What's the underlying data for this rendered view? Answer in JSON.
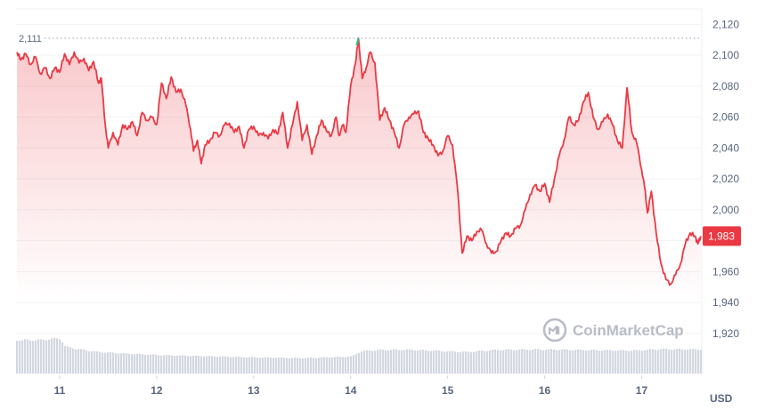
{
  "chart_data": {
    "type": "area",
    "currency": "USD",
    "ylim": [
      1900,
      2130
    ],
    "y_ticks": [
      1920,
      1940,
      1960,
      1980,
      2000,
      2020,
      2040,
      2060,
      2080,
      2100,
      2120
    ],
    "y_tick_labels": [
      "1,920",
      "1,940",
      "1,960",
      "1,980",
      "2,000",
      "2,020",
      "2,040",
      "2,060",
      "2,080",
      "2,100",
      "2,120"
    ],
    "x_range": [
      10.55,
      17.62
    ],
    "x_ticks": [
      11,
      12,
      13,
      14,
      15,
      16,
      17
    ],
    "x_tick_labels": [
      "11",
      "12",
      "13",
      "14",
      "15",
      "16",
      "17"
    ],
    "high_value": 2111,
    "high_label": "2,111",
    "current_value": 1983,
    "current_label": "1,983",
    "grid": true,
    "watermark": "CoinMarketCap",
    "colors": {
      "line": "#ea3943",
      "peak_segment": "#16c784",
      "fill_top": "#ea3943",
      "volume": "#d3d7e0",
      "grid": "#eff2f5",
      "axis_text": "#58667e",
      "price_tag": "#ea3943",
      "price_tag_text": "#ffffff"
    },
    "series": [
      {
        "points": [
          [
            10.56,
            2102
          ],
          [
            10.6,
            2097
          ],
          [
            10.65,
            2101
          ],
          [
            10.7,
            2094
          ],
          [
            10.75,
            2099
          ],
          [
            10.8,
            2088
          ],
          [
            10.85,
            2092
          ],
          [
            10.9,
            2085
          ],
          [
            10.95,
            2092
          ],
          [
            11.0,
            2089
          ],
          [
            11.05,
            2101
          ],
          [
            11.1,
            2094
          ],
          [
            11.15,
            2102
          ],
          [
            11.2,
            2095
          ],
          [
            11.25,
            2098
          ],
          [
            11.3,
            2090
          ],
          [
            11.35,
            2096
          ],
          [
            11.4,
            2082
          ],
          [
            11.43,
            2085
          ],
          [
            11.47,
            2055
          ],
          [
            11.5,
            2040
          ],
          [
            11.55,
            2050
          ],
          [
            11.6,
            2042
          ],
          [
            11.65,
            2055
          ],
          [
            11.7,
            2052
          ],
          [
            11.75,
            2057
          ],
          [
            11.8,
            2048
          ],
          [
            11.85,
            2063
          ],
          [
            11.9,
            2058
          ],
          [
            11.95,
            2060
          ],
          [
            12.0,
            2055
          ],
          [
            12.05,
            2082
          ],
          [
            12.1,
            2072
          ],
          [
            12.15,
            2086
          ],
          [
            12.2,
            2076
          ],
          [
            12.25,
            2078
          ],
          [
            12.3,
            2068
          ],
          [
            12.35,
            2052
          ],
          [
            12.38,
            2038
          ],
          [
            12.42,
            2045
          ],
          [
            12.46,
            2030
          ],
          [
            12.5,
            2042
          ],
          [
            12.55,
            2045
          ],
          [
            12.6,
            2050
          ],
          [
            12.65,
            2048
          ],
          [
            12.7,
            2055
          ],
          [
            12.75,
            2056
          ],
          [
            12.8,
            2050
          ],
          [
            12.85,
            2054
          ],
          [
            12.9,
            2040
          ],
          [
            12.95,
            2052
          ],
          [
            13.0,
            2054
          ],
          [
            13.05,
            2048
          ],
          [
            13.1,
            2050
          ],
          [
            13.15,
            2046
          ],
          [
            13.2,
            2052
          ],
          [
            13.25,
            2049
          ],
          [
            13.3,
            2063
          ],
          [
            13.35,
            2040
          ],
          [
            13.4,
            2055
          ],
          [
            13.45,
            2070
          ],
          [
            13.5,
            2045
          ],
          [
            13.55,
            2055
          ],
          [
            13.6,
            2036
          ],
          [
            13.65,
            2048
          ],
          [
            13.7,
            2058
          ],
          [
            13.75,
            2051
          ],
          [
            13.8,
            2048
          ],
          [
            13.85,
            2060
          ],
          [
            13.88,
            2048
          ],
          [
            13.92,
            2055
          ],
          [
            13.95,
            2050
          ],
          [
            14.0,
            2080
          ],
          [
            14.05,
            2095
          ],
          [
            14.08,
            2111
          ],
          [
            14.12,
            2085
          ],
          [
            14.16,
            2092
          ],
          [
            14.2,
            2102
          ],
          [
            14.25,
            2095
          ],
          [
            14.3,
            2058
          ],
          [
            14.35,
            2066
          ],
          [
            14.4,
            2058
          ],
          [
            14.45,
            2050
          ],
          [
            14.5,
            2040
          ],
          [
            14.55,
            2055
          ],
          [
            14.6,
            2060
          ],
          [
            14.65,
            2062
          ],
          [
            14.7,
            2064
          ],
          [
            14.75,
            2050
          ],
          [
            14.8,
            2046
          ],
          [
            14.85,
            2042
          ],
          [
            14.9,
            2035
          ],
          [
            14.95,
            2038
          ],
          [
            15.0,
            2048
          ],
          [
            15.05,
            2042
          ],
          [
            15.1,
            2015
          ],
          [
            15.15,
            1972
          ],
          [
            15.2,
            1983
          ],
          [
            15.25,
            1980
          ],
          [
            15.3,
            1986
          ],
          [
            15.35,
            1987
          ],
          [
            15.4,
            1978
          ],
          [
            15.45,
            1972
          ],
          [
            15.5,
            1973
          ],
          [
            15.55,
            1980
          ],
          [
            15.6,
            1985
          ],
          [
            15.65,
            1983
          ],
          [
            15.7,
            1988
          ],
          [
            15.75,
            1990
          ],
          [
            15.8,
            2000
          ],
          [
            15.85,
            2010
          ],
          [
            15.9,
            2016
          ],
          [
            15.95,
            2012
          ],
          [
            16.0,
            2017
          ],
          [
            16.05,
            2005
          ],
          [
            16.1,
            2020
          ],
          [
            16.15,
            2035
          ],
          [
            16.2,
            2045
          ],
          [
            16.25,
            2060
          ],
          [
            16.3,
            2055
          ],
          [
            16.35,
            2058
          ],
          [
            16.4,
            2070
          ],
          [
            16.45,
            2076
          ],
          [
            16.5,
            2060
          ],
          [
            16.55,
            2052
          ],
          [
            16.6,
            2057
          ],
          [
            16.65,
            2062
          ],
          [
            16.7,
            2055
          ],
          [
            16.75,
            2045
          ],
          [
            16.8,
            2040
          ],
          [
            16.85,
            2079
          ],
          [
            16.9,
            2050
          ],
          [
            16.95,
            2043
          ],
          [
            17.0,
            2026
          ],
          [
            17.03,
            2015
          ],
          [
            17.06,
            1998
          ],
          [
            17.1,
            2012
          ],
          [
            17.15,
            1985
          ],
          [
            17.2,
            1965
          ],
          [
            17.25,
            1955
          ],
          [
            17.3,
            1952
          ],
          [
            17.35,
            1958
          ],
          [
            17.4,
            1965
          ],
          [
            17.45,
            1978
          ],
          [
            17.5,
            1985
          ],
          [
            17.55,
            1983
          ],
          [
            17.58,
            1978
          ],
          [
            17.61,
            1983
          ]
        ]
      },
      {
        "name": "volume",
        "points": [
          [
            10.56,
            0.8
          ],
          [
            10.8,
            0.8
          ],
          [
            10.9,
            0.83
          ],
          [
            11.0,
            0.84
          ],
          [
            11.05,
            0.62
          ],
          [
            11.2,
            0.55
          ],
          [
            11.4,
            0.48
          ],
          [
            11.6,
            0.45
          ],
          [
            12.0,
            0.4
          ],
          [
            12.5,
            0.37
          ],
          [
            13.0,
            0.34
          ],
          [
            13.5,
            0.32
          ],
          [
            14.0,
            0.36
          ],
          [
            14.1,
            0.5
          ],
          [
            14.3,
            0.54
          ],
          [
            14.6,
            0.54
          ],
          [
            15.0,
            0.5
          ],
          [
            15.2,
            0.48
          ],
          [
            15.5,
            0.54
          ],
          [
            16.0,
            0.55
          ],
          [
            16.5,
            0.53
          ],
          [
            16.9,
            0.52
          ],
          [
            17.2,
            0.56
          ],
          [
            17.62,
            0.55
          ]
        ]
      }
    ]
  }
}
